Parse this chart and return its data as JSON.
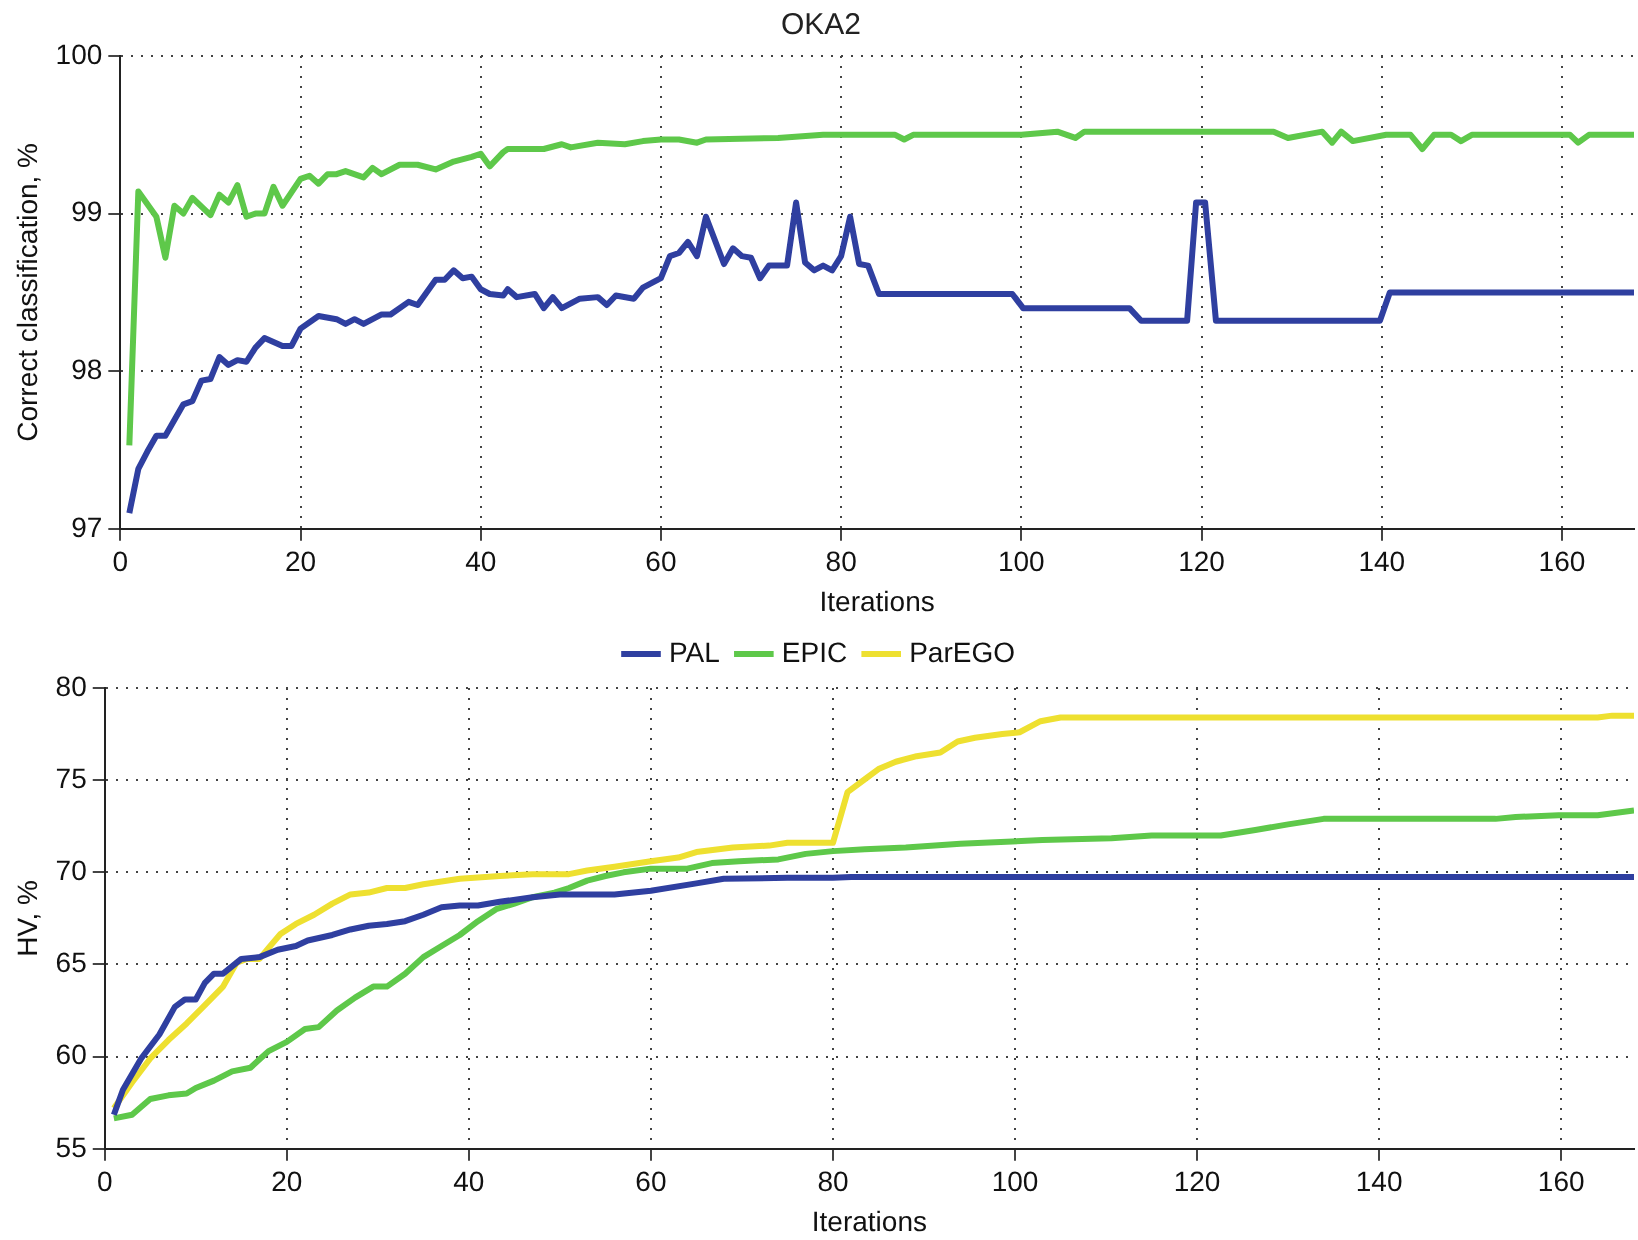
{
  "chart_data": [
    {
      "type": "line",
      "title": "OKA2",
      "xlabel": "Iterations",
      "ylabel": "Correct classification, %",
      "xlim": [
        0,
        168
      ],
      "xticks": [
        0,
        20,
        40,
        60,
        80,
        100,
        120,
        140,
        160
      ],
      "ylim": [
        97,
        100
      ],
      "yticks": [
        97,
        98,
        99,
        100
      ],
      "grid": true,
      "legend": false,
      "marker": "none",
      "line_style": "solid",
      "series": [
        {
          "color": "#5ec84a",
          "x": [
            1,
            2,
            4,
            5,
            6,
            7,
            8,
            10,
            11,
            12,
            13,
            14,
            15,
            16,
            17,
            18,
            20,
            21,
            22,
            23,
            24,
            25,
            27,
            28,
            29,
            31,
            33,
            35,
            37,
            39,
            40,
            41,
            42.5,
            43,
            47,
            49,
            50,
            53,
            56,
            58,
            60,
            62,
            64,
            65,
            73,
            78,
            86,
            87,
            88,
            100,
            104,
            106,
            107,
            120,
            128,
            129.6,
            133.4,
            134.5,
            135.5,
            136.8,
            140.5,
            143.2,
            144.5,
            145.8,
            147.7,
            148.8,
            150,
            152.2,
            160.9,
            161.8,
            163,
            168
          ],
          "values": [
            97.53,
            99.14,
            98.98,
            98.72,
            99.05,
            99.0,
            99.1,
            98.99,
            99.12,
            99.07,
            99.18,
            98.98,
            99.0,
            99.0,
            99.17,
            99.05,
            99.22,
            99.24,
            99.19,
            99.25,
            99.25,
            99.27,
            99.23,
            99.29,
            99.25,
            99.31,
            99.31,
            99.28,
            99.33,
            99.36,
            99.38,
            99.3,
            99.39,
            99.41,
            99.41,
            99.44,
            99.42,
            99.45,
            99.44,
            99.46,
            99.47,
            99.47,
            99.45,
            99.47,
            99.48,
            99.5,
            99.5,
            99.47,
            99.5,
            99.5,
            99.52,
            99.48,
            99.52,
            99.52,
            99.52,
            99.48,
            99.52,
            99.45,
            99.52,
            99.46,
            99.5,
            99.5,
            99.41,
            99.5,
            99.5,
            99.46,
            99.5,
            99.5,
            99.5,
            99.45,
            99.5,
            99.5
          ]
        },
        {
          "color": "#2f3fa0",
          "x": [
            1,
            2,
            3,
            4,
            5,
            6,
            7,
            8,
            9,
            10,
            11,
            12,
            13,
            14,
            15,
            16,
            18,
            19,
            20,
            22,
            24,
            25,
            26,
            27,
            29,
            30,
            32,
            33,
            35,
            36,
            37,
            38,
            39,
            40,
            41,
            42.5,
            43,
            44,
            46,
            47,
            48,
            49,
            51,
            53,
            54,
            55,
            57,
            58,
            60,
            61,
            62,
            63,
            64,
            65,
            67,
            68,
            69,
            70,
            71,
            72,
            74,
            75,
            76,
            77,
            78,
            79,
            80,
            81,
            82,
            83,
            84.2,
            99,
            100.2,
            112,
            113.3,
            118.4,
            119.4,
            120.4,
            121.6,
            139.8,
            140.9,
            168
          ],
          "values": [
            97.1,
            97.38,
            97.49,
            97.59,
            97.59,
            97.69,
            97.79,
            97.81,
            97.94,
            97.95,
            98.09,
            98.04,
            98.07,
            98.06,
            98.15,
            98.21,
            98.16,
            98.16,
            98.27,
            98.35,
            98.33,
            98.3,
            98.33,
            98.3,
            98.36,
            98.36,
            98.44,
            98.42,
            98.58,
            98.58,
            98.64,
            98.59,
            98.6,
            98.52,
            98.49,
            98.48,
            98.52,
            98.47,
            98.49,
            98.4,
            98.47,
            98.4,
            98.46,
            98.47,
            98.42,
            98.48,
            98.46,
            98.53,
            98.59,
            98.73,
            98.75,
            98.82,
            98.73,
            98.98,
            98.68,
            98.78,
            98.73,
            98.72,
            98.59,
            98.67,
            98.67,
            99.07,
            98.69,
            98.64,
            98.67,
            98.64,
            98.73,
            98.98,
            98.68,
            98.67,
            98.49,
            98.49,
            98.4,
            98.4,
            98.32,
            98.32,
            99.07,
            99.07,
            98.32,
            98.32,
            98.5,
            98.5
          ]
        }
      ]
    },
    {
      "type": "line",
      "xlabel": "Iterations",
      "ylabel": "HV, %",
      "xlim": [
        0,
        168
      ],
      "xticks": [
        0,
        20,
        40,
        60,
        80,
        100,
        120,
        140,
        160
      ],
      "ylim": [
        55,
        80
      ],
      "yticks": [
        55,
        60,
        65,
        70,
        75,
        80
      ],
      "grid": true,
      "legend": "top",
      "marker": "none",
      "line_style": "solid",
      "series": [
        {
          "name": "PAL",
          "color": "#2f3fa0",
          "x": [
            1,
            2,
            4,
            6,
            7.7,
            8.8,
            10,
            11,
            12,
            13,
            15,
            17,
            19,
            21,
            22.3,
            25,
            27,
            29,
            31,
            33,
            35,
            37,
            39,
            41,
            43.4,
            47,
            50,
            56,
            60,
            65,
            68,
            75,
            80,
            82,
            168
          ],
          "values": [
            56.85,
            58.2,
            59.9,
            61.2,
            62.7,
            63.1,
            63.1,
            64.0,
            64.5,
            64.5,
            65.3,
            65.4,
            65.8,
            66.0,
            66.3,
            66.6,
            66.9,
            67.1,
            67.2,
            67.35,
            67.7,
            68.1,
            68.2,
            68.2,
            68.4,
            68.65,
            68.8,
            68.8,
            69.0,
            69.4,
            69.65,
            69.7,
            69.7,
            69.75,
            69.75
          ]
        },
        {
          "name": "EPIC",
          "color": "#5ec84a",
          "x": [
            1,
            3,
            5,
            7,
            9,
            10,
            12,
            14,
            16,
            18,
            20,
            22,
            23.5,
            25.5,
            27.5,
            29.5,
            31,
            33,
            35,
            37,
            39,
            41,
            43,
            45,
            47,
            49.4,
            51,
            53,
            55,
            57,
            60,
            64,
            66.7,
            69.7,
            74,
            77,
            80,
            83.5,
            88,
            94,
            103,
            110.6,
            115,
            122.6,
            126.4,
            130,
            133.9,
            152.8,
            155,
            159.7,
            164,
            168
          ],
          "values": [
            56.65,
            56.85,
            57.7,
            57.9,
            58.0,
            58.3,
            58.7,
            59.2,
            59.4,
            60.3,
            60.8,
            61.5,
            61.6,
            62.5,
            63.2,
            63.8,
            63.8,
            64.5,
            65.4,
            66.0,
            66.6,
            67.35,
            68.0,
            68.3,
            68.65,
            68.9,
            69.15,
            69.55,
            69.8,
            70.0,
            70.2,
            70.2,
            70.5,
            70.6,
            70.7,
            71.0,
            71.15,
            71.25,
            71.35,
            71.55,
            71.75,
            71.85,
            72.0,
            72.0,
            72.3,
            72.6,
            72.9,
            72.9,
            73.0,
            73.1,
            73.1,
            73.35
          ]
        },
        {
          "name": "ParEGO",
          "color": "#eee030",
          "x": [
            1,
            3,
            5,
            7,
            9,
            11,
            13,
            14.5,
            15.6,
            17,
            18,
            19.3,
            21,
            23,
            25,
            27,
            29,
            31,
            33,
            35,
            39,
            43.4,
            47,
            51,
            53,
            56,
            60,
            63,
            65,
            69,
            73,
            75,
            80,
            81.6,
            83.5,
            85,
            86.9,
            89.2,
            91.8,
            93.7,
            95.6,
            98.6,
            100.5,
            102.8,
            105,
            164,
            165.6,
            168
          ],
          "values": [
            57.2,
            58.6,
            59.9,
            60.9,
            61.8,
            62.8,
            63.8,
            65.1,
            65.3,
            65.3,
            65.9,
            66.65,
            67.2,
            67.7,
            68.3,
            68.8,
            68.9,
            69.15,
            69.15,
            69.35,
            69.65,
            69.8,
            69.9,
            69.9,
            70.1,
            70.3,
            70.6,
            70.8,
            71.1,
            71.35,
            71.45,
            71.6,
            71.6,
            74.35,
            75.05,
            75.6,
            76.0,
            76.3,
            76.5,
            77.1,
            77.3,
            77.5,
            77.6,
            78.2,
            78.4,
            78.4,
            78.5,
            78.5
          ]
        }
      ]
    }
  ]
}
